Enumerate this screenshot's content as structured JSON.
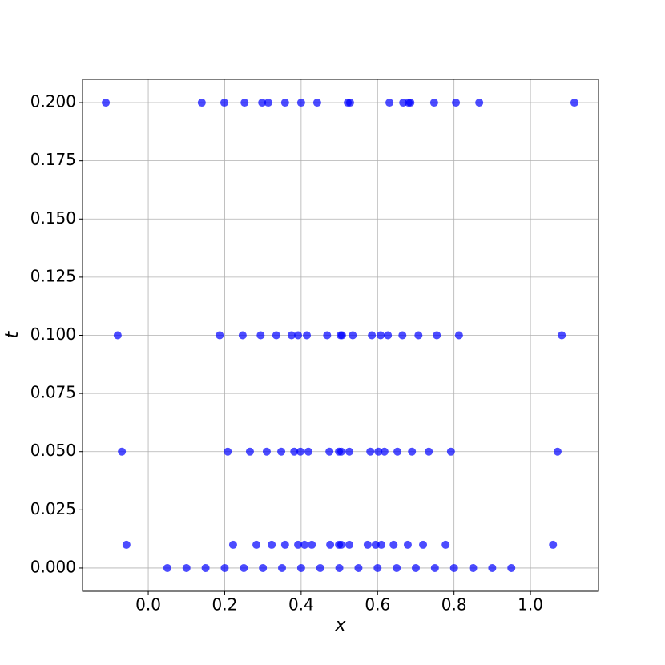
{
  "chart_data": {
    "type": "scatter",
    "xlabel": "x",
    "ylabel": "t",
    "color": "#0000ff",
    "opacity": 0.7,
    "grid": true,
    "xlim": [
      -0.172,
      1.178
    ],
    "ylim": [
      -0.01,
      0.21
    ],
    "xticks": [
      {
        "value": 0,
        "label": "0.0"
      },
      0.2,
      0.4,
      0.6,
      0.8,
      {
        "value": 1,
        "label": "1.0"
      }
    ],
    "yticks": [
      {
        "value": 0,
        "label": "0.000"
      },
      0.025,
      {
        "value": 0.05,
        "label": "0.050"
      },
      0.075,
      {
        "value": 0.1,
        "label": "0.100"
      },
      0.125,
      {
        "value": 0.15,
        "label": "0.150"
      },
      0.175,
      {
        "value": 0.2,
        "label": "0.200"
      }
    ],
    "x": [
      -0.111,
      0.14,
      0.199,
      0.252,
      0.298,
      0.314,
      0.358,
      0.4,
      0.442,
      0.522,
      0.528,
      0.631,
      0.667,
      0.681,
      0.686,
      0.748,
      0.805,
      0.866,
      1.115,
      -0.08,
      0.187,
      0.247,
      0.294,
      0.335,
      0.375,
      0.392,
      0.415,
      0.468,
      0.503,
      0.507,
      0.535,
      0.585,
      0.608,
      0.627,
      0.665,
      0.707,
      0.755,
      0.813,
      1.082,
      -0.069,
      0.208,
      0.266,
      0.31,
      0.348,
      0.382,
      0.398,
      0.419,
      0.474,
      0.499,
      0.505,
      0.526,
      0.581,
      0.602,
      0.618,
      0.652,
      0.69,
      0.734,
      0.792,
      1.071,
      -0.057,
      0.222,
      0.283,
      0.323,
      0.358,
      0.392,
      0.409,
      0.428,
      0.476,
      0.499,
      0.505,
      0.526,
      0.574,
      0.595,
      0.61,
      0.642,
      0.679,
      0.719,
      0.778,
      1.059,
      0.05,
      0.1,
      0.15,
      0.2,
      0.25,
      0.3,
      0.35,
      0.4,
      0.45,
      0.5,
      0.55,
      0.6,
      0.65,
      0.7,
      0.75,
      0.8,
      0.85,
      0.9,
      0.95
    ],
    "values": [
      0.2,
      0.2,
      0.2,
      0.2,
      0.2,
      0.2,
      0.2,
      0.2,
      0.2,
      0.2,
      0.2,
      0.2,
      0.2,
      0.2,
      0.2,
      0.2,
      0.2,
      0.2,
      0.2,
      0.1,
      0.1,
      0.1,
      0.1,
      0.1,
      0.1,
      0.1,
      0.1,
      0.1,
      0.1,
      0.1,
      0.1,
      0.1,
      0.1,
      0.1,
      0.1,
      0.1,
      0.1,
      0.1,
      0.1,
      0.05,
      0.05,
      0.05,
      0.05,
      0.05,
      0.05,
      0.05,
      0.05,
      0.05,
      0.05,
      0.05,
      0.05,
      0.05,
      0.05,
      0.05,
      0.05,
      0.05,
      0.05,
      0.05,
      0.05,
      0.01,
      0.01,
      0.01,
      0.01,
      0.01,
      0.01,
      0.01,
      0.01,
      0.01,
      0.01,
      0.01,
      0.01,
      0.01,
      0.01,
      0.01,
      0.01,
      0.01,
      0.01,
      0.01,
      0.01,
      0,
      0,
      0,
      0,
      0,
      0,
      0,
      0,
      0,
      0,
      0,
      0,
      0,
      0,
      0,
      0,
      0,
      0,
      0
    ]
  }
}
